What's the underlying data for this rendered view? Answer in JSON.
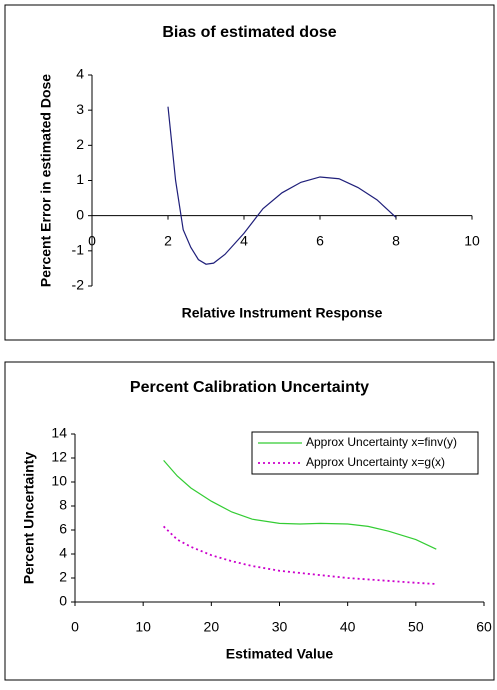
{
  "chart_data": [
    {
      "type": "line",
      "title": "Bias of estimated dose",
      "xlabel": "Relative Instrument Response",
      "ylabel": "Percent Error in estimated Dose",
      "xlim": [
        0,
        10
      ],
      "xticks": [
        0,
        2,
        4,
        6,
        8,
        10
      ],
      "ylim": [
        -2,
        4
      ],
      "yticks": [
        -2,
        -1,
        0,
        1,
        2,
        3,
        4
      ],
      "series": [
        {
          "color": "#1f1f7a",
          "dash": "solid",
          "x": [
            2,
            2.2,
            2.4,
            2.6,
            2.8,
            3,
            3.2,
            3.5,
            4,
            4.5,
            5,
            5.5,
            6,
            6.5,
            7,
            7.5,
            8
          ],
          "values": [
            3.1,
            1.0,
            -0.4,
            -0.9,
            -1.25,
            -1.38,
            -1.35,
            -1.1,
            -0.5,
            0.2,
            0.65,
            0.95,
            1.1,
            1.05,
            0.8,
            0.45,
            -0.05
          ]
        }
      ]
    },
    {
      "type": "line",
      "title": "Percent Calibration Uncertainty",
      "xlabel": "Estimated Value",
      "ylabel": "Percent Uncertainty",
      "xlim": [
        0,
        60
      ],
      "xticks": [
        0,
        10,
        20,
        30,
        40,
        50,
        60
      ],
      "ylim": [
        0,
        14
      ],
      "yticks": [
        0,
        2,
        4,
        6,
        8,
        10,
        12,
        14
      ],
      "legend": "upper right",
      "series": [
        {
          "name": "Approx Uncertainty x=finv(y)",
          "color": "#33cc33",
          "dash": "solid",
          "x": [
            13,
            15,
            17,
            20,
            23,
            26,
            30,
            33,
            36,
            40,
            43,
            46,
            50,
            53
          ],
          "values": [
            11.8,
            10.5,
            9.5,
            8.4,
            7.5,
            6.9,
            6.55,
            6.5,
            6.55,
            6.5,
            6.3,
            5.9,
            5.2,
            4.4
          ]
        },
        {
          "name": "Approx Uncertainty x=g(x)",
          "color": "#cc00cc",
          "dash": "dotted",
          "x": [
            13,
            15,
            17,
            20,
            23,
            26,
            30,
            35,
            40,
            45,
            50,
            53
          ],
          "values": [
            6.3,
            5.2,
            4.6,
            3.9,
            3.4,
            3.0,
            2.6,
            2.3,
            2.0,
            1.8,
            1.6,
            1.5
          ]
        }
      ]
    }
  ]
}
